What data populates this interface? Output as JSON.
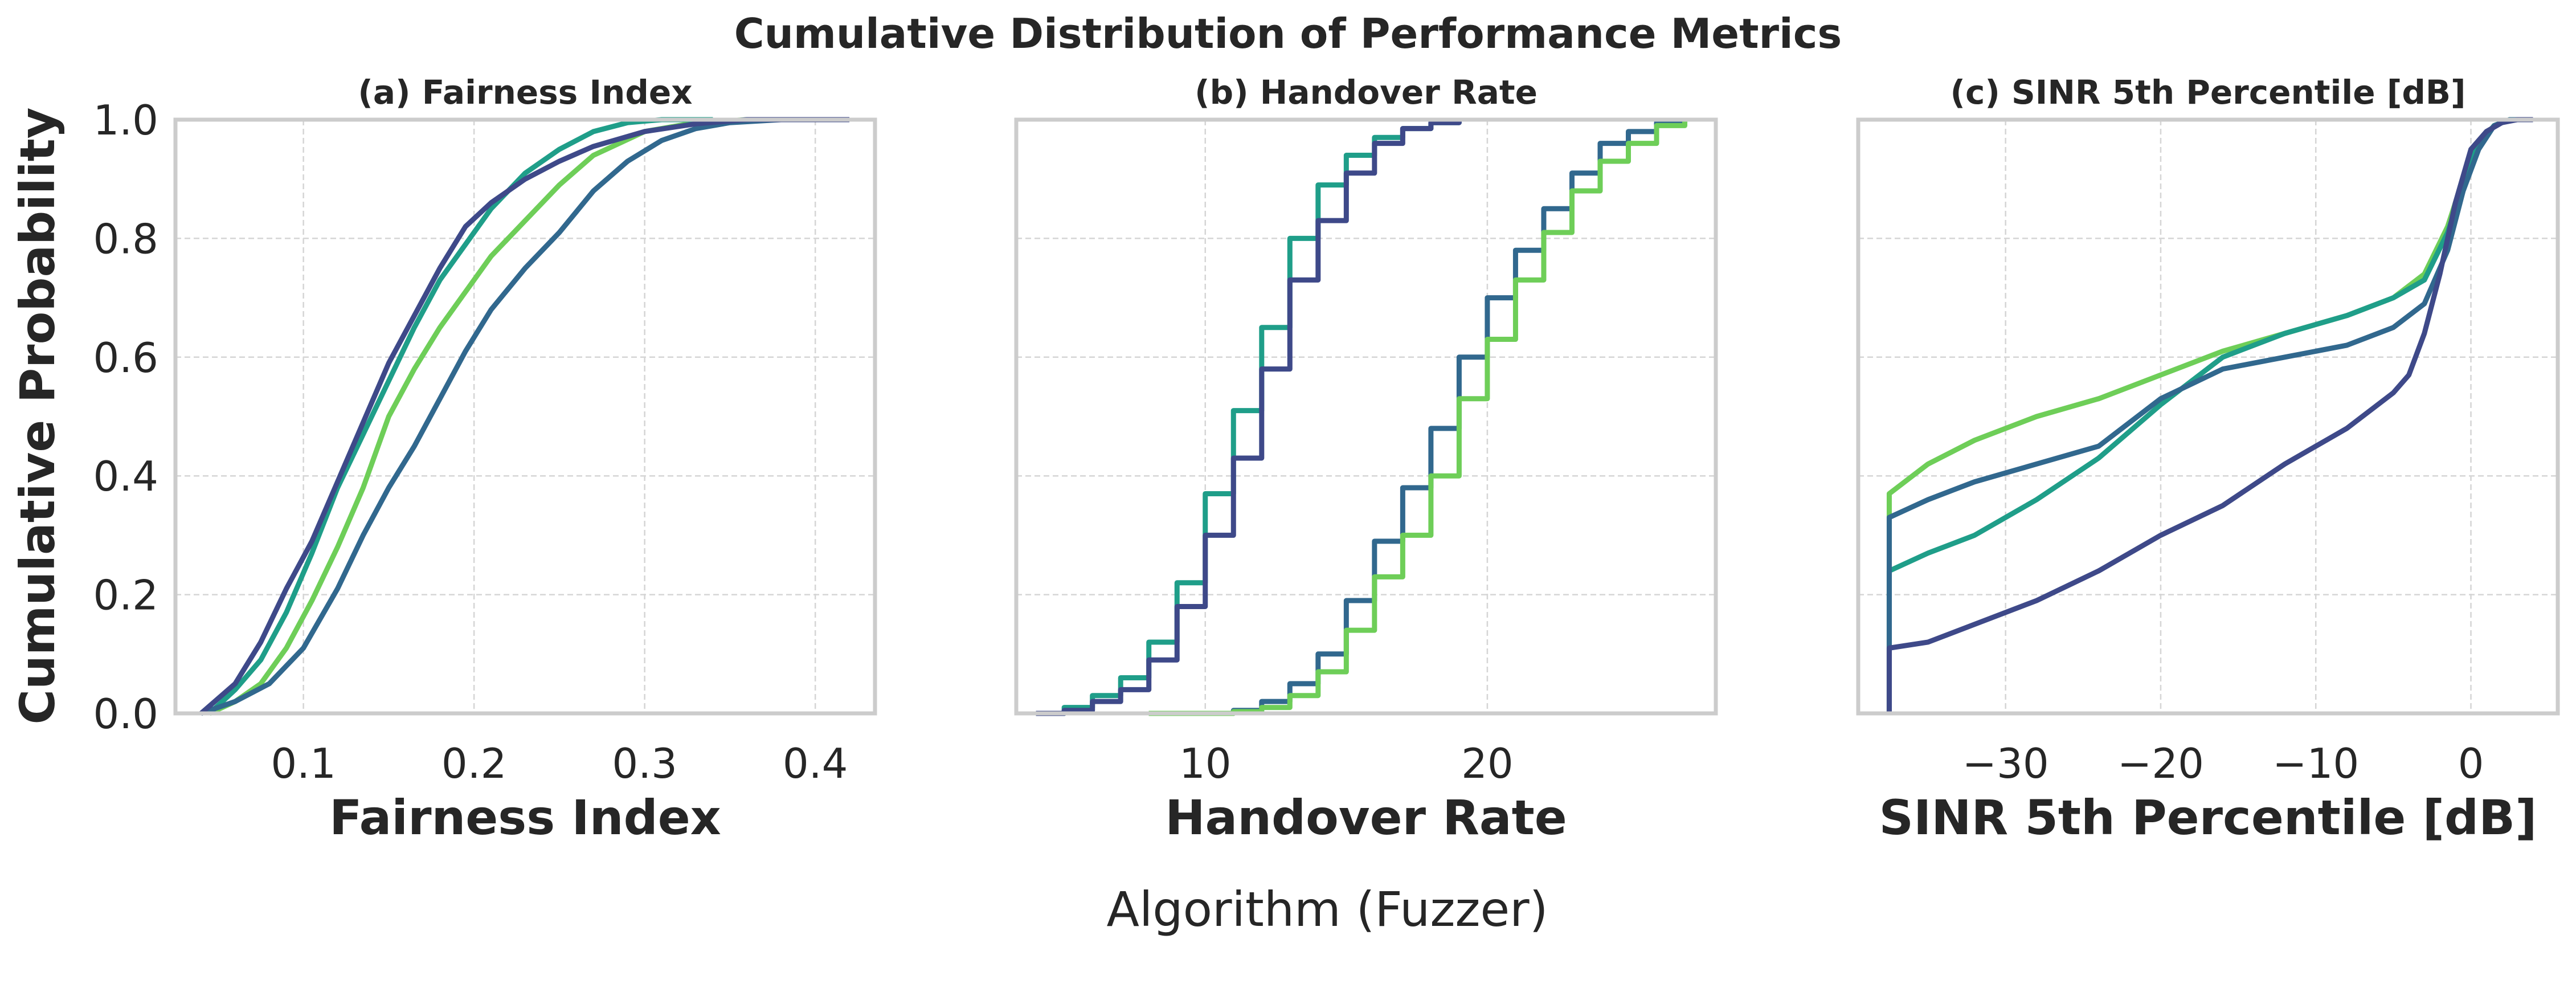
{
  "figure": {
    "title": "Cumulative Distribution of Performance Metrics",
    "ylabel": "Cumulative Probability",
    "legend_title": "Algorithm (Fuzzer)"
  },
  "colors": [
    "#3e4989",
    "#31688e",
    "#26828e",
    "#1f9e89",
    "#35b779",
    "#6ece58"
  ],
  "chart_data": [
    {
      "type": "line",
      "title": "(a) Fairness Index",
      "xlabel": "Fairness Index",
      "ylabel": "Cumulative Probability",
      "xlim": [
        0.025,
        0.435
      ],
      "ylim": [
        0,
        1
      ],
      "xticks": [
        0.1,
        0.2,
        0.3,
        0.4
      ],
      "xtick_labels": [
        "0.1",
        "0.2",
        "0.3",
        "0.4"
      ],
      "yticks": [
        0,
        0.2,
        0.4,
        0.6,
        0.8,
        1.0
      ],
      "ytick_labels": [
        "0.0",
        "0.2",
        "0.4",
        "0.6",
        "0.8",
        "1.0"
      ],
      "grid": true,
      "series": [
        {
          "color": "#6ece58",
          "x": [
            0.045,
            0.06,
            0.075,
            0.09,
            0.105,
            0.12,
            0.135,
            0.15,
            0.165,
            0.18,
            0.195,
            0.21,
            0.23,
            0.25,
            0.27,
            0.3,
            0.33,
            0.36,
            0.4
          ],
          "y": [
            0,
            0.02,
            0.05,
            0.11,
            0.19,
            0.28,
            0.38,
            0.5,
            0.58,
            0.65,
            0.71,
            0.77,
            0.83,
            0.89,
            0.94,
            0.98,
            0.995,
            1.0,
            1.0
          ]
        },
        {
          "color": "#1f9e89",
          "x": [
            0.045,
            0.06,
            0.075,
            0.09,
            0.105,
            0.12,
            0.135,
            0.15,
            0.165,
            0.18,
            0.195,
            0.21,
            0.23,
            0.25,
            0.27,
            0.29,
            0.31,
            0.34
          ],
          "y": [
            0,
            0.04,
            0.09,
            0.17,
            0.27,
            0.38,
            0.47,
            0.56,
            0.65,
            0.73,
            0.79,
            0.85,
            0.91,
            0.95,
            0.98,
            0.995,
            1.0,
            1.0
          ]
        },
        {
          "color": "#31688e",
          "x": [
            0.04,
            0.06,
            0.08,
            0.1,
            0.12,
            0.135,
            0.15,
            0.165,
            0.18,
            0.195,
            0.21,
            0.23,
            0.25,
            0.27,
            0.29,
            0.31,
            0.33,
            0.35,
            0.38
          ],
          "y": [
            0,
            0.02,
            0.05,
            0.11,
            0.21,
            0.3,
            0.38,
            0.45,
            0.53,
            0.61,
            0.68,
            0.75,
            0.81,
            0.88,
            0.93,
            0.965,
            0.985,
            0.995,
            1.0
          ]
        },
        {
          "color": "#3e4989",
          "x": [
            0.04,
            0.06,
            0.075,
            0.09,
            0.105,
            0.12,
            0.135,
            0.15,
            0.165,
            0.18,
            0.195,
            0.21,
            0.23,
            0.25,
            0.27,
            0.3,
            0.33,
            0.36,
            0.42
          ],
          "y": [
            0,
            0.05,
            0.12,
            0.21,
            0.29,
            0.39,
            0.49,
            0.59,
            0.67,
            0.75,
            0.82,
            0.86,
            0.9,
            0.93,
            0.955,
            0.98,
            0.993,
            1.0,
            1.0
          ]
        }
      ]
    },
    {
      "type": "line",
      "title": "(b) Handover Rate",
      "xlabel": "Handover Rate",
      "ylabel": "",
      "xlim": [
        3.3,
        28.1
      ],
      "ylim": [
        0,
        1
      ],
      "xticks": [
        10,
        20
      ],
      "xtick_labels": [
        "10",
        "20"
      ],
      "yticks": [
        0,
        0.2,
        0.4,
        0.6,
        0.8,
        1.0
      ],
      "ytick_labels": [
        "",
        "",
        "",
        "",
        "",
        ""
      ],
      "grid": true,
      "steps": true,
      "series": [
        {
          "color": "#1f9e89",
          "x": [
            4,
            5,
            6,
            7,
            8,
            9,
            10,
            11,
            12,
            13,
            14,
            15,
            16,
            17,
            18,
            19
          ],
          "y": [
            0,
            0.01,
            0.03,
            0.06,
            0.12,
            0.22,
            0.37,
            0.51,
            0.65,
            0.8,
            0.89,
            0.94,
            0.97,
            0.985,
            0.995,
            1.0
          ]
        },
        {
          "color": "#3e4989",
          "x": [
            4,
            5,
            6,
            7,
            8,
            9,
            10,
            11,
            12,
            13,
            14,
            15,
            16,
            17,
            18,
            19
          ],
          "y": [
            0,
            0.005,
            0.02,
            0.04,
            0.09,
            0.18,
            0.3,
            0.43,
            0.58,
            0.73,
            0.83,
            0.91,
            0.96,
            0.985,
            0.995,
            1.0
          ]
        },
        {
          "color": "#31688e",
          "x": [
            8,
            11,
            12,
            13,
            14,
            15,
            16,
            17,
            18,
            19,
            20,
            21,
            22,
            23,
            24,
            25,
            26,
            27
          ],
          "y": [
            0,
            0.005,
            0.02,
            0.05,
            0.1,
            0.19,
            0.29,
            0.38,
            0.48,
            0.6,
            0.7,
            0.78,
            0.85,
            0.91,
            0.96,
            0.98,
            0.995,
            1.0
          ]
        },
        {
          "color": "#6ece58",
          "x": [
            8,
            11,
            12,
            13,
            14,
            15,
            16,
            17,
            18,
            19,
            20,
            21,
            22,
            23,
            24,
            25,
            26,
            27
          ],
          "y": [
            0,
            0.003,
            0.01,
            0.03,
            0.07,
            0.14,
            0.23,
            0.3,
            0.4,
            0.53,
            0.63,
            0.73,
            0.81,
            0.88,
            0.93,
            0.96,
            0.99,
            1.0
          ]
        }
      ]
    },
    {
      "type": "line",
      "title": "(c) SINR 5th Percentile [dB]",
      "xlabel": "SINR 5th Percentile [dB]",
      "ylabel": "",
      "xlim": [
        -39.5,
        5.6
      ],
      "ylim": [
        0,
        1
      ],
      "xticks": [
        -30,
        -20,
        -10,
        0
      ],
      "xtick_labels": [
        "−30",
        "−20",
        "−10",
        "0"
      ],
      "yticks": [
        0,
        0.2,
        0.4,
        0.6,
        0.8,
        1.0
      ],
      "ytick_labels": [
        "",
        "",
        "",
        "",
        "",
        ""
      ],
      "grid": true,
      "series": [
        {
          "color": "#6ece58",
          "x": [
            -37.5,
            -37.5,
            -35,
            -32,
            -28,
            -24,
            -20,
            -16,
            -12,
            -8,
            -5,
            -3,
            -1.5,
            -0.5,
            0.5,
            1.5,
            2.5,
            4
          ],
          "y": [
            0,
            0.37,
            0.42,
            0.46,
            0.5,
            0.53,
            0.57,
            0.61,
            0.64,
            0.67,
            0.7,
            0.74,
            0.82,
            0.9,
            0.96,
            0.99,
            1.0,
            1.0
          ]
        },
        {
          "color": "#1f9e89",
          "x": [
            -37.5,
            -37.5,
            -35,
            -32,
            -28,
            -24,
            -20,
            -16,
            -12,
            -8,
            -5,
            -3,
            -1.5,
            -0.5,
            0.5,
            1.5,
            2.5,
            4
          ],
          "y": [
            0,
            0.24,
            0.27,
            0.3,
            0.36,
            0.43,
            0.52,
            0.6,
            0.64,
            0.67,
            0.7,
            0.73,
            0.81,
            0.89,
            0.96,
            0.99,
            1.0,
            1.0
          ]
        },
        {
          "color": "#31688e",
          "x": [
            -37.5,
            -37.5,
            -35,
            -32,
            -28,
            -24,
            -20,
            -16,
            -12,
            -8,
            -5,
            -3,
            -1.5,
            -0.5,
            0.5,
            1.5,
            2.5,
            4
          ],
          "y": [
            0,
            0.33,
            0.36,
            0.39,
            0.42,
            0.45,
            0.53,
            0.58,
            0.6,
            0.62,
            0.65,
            0.69,
            0.78,
            0.88,
            0.95,
            0.99,
            1.0,
            1.0
          ]
        },
        {
          "color": "#3e4989",
          "x": [
            -37.5,
            -37.5,
            -35,
            -32,
            -28,
            -24,
            -20,
            -16,
            -12,
            -8,
            -5,
            -4,
            -3,
            -2,
            -1,
            0,
            1,
            2,
            3,
            4
          ],
          "y": [
            0,
            0.11,
            0.12,
            0.15,
            0.19,
            0.24,
            0.3,
            0.35,
            0.42,
            0.48,
            0.54,
            0.57,
            0.64,
            0.74,
            0.86,
            0.95,
            0.98,
            0.995,
            1.0,
            1.0
          ]
        }
      ]
    }
  ]
}
